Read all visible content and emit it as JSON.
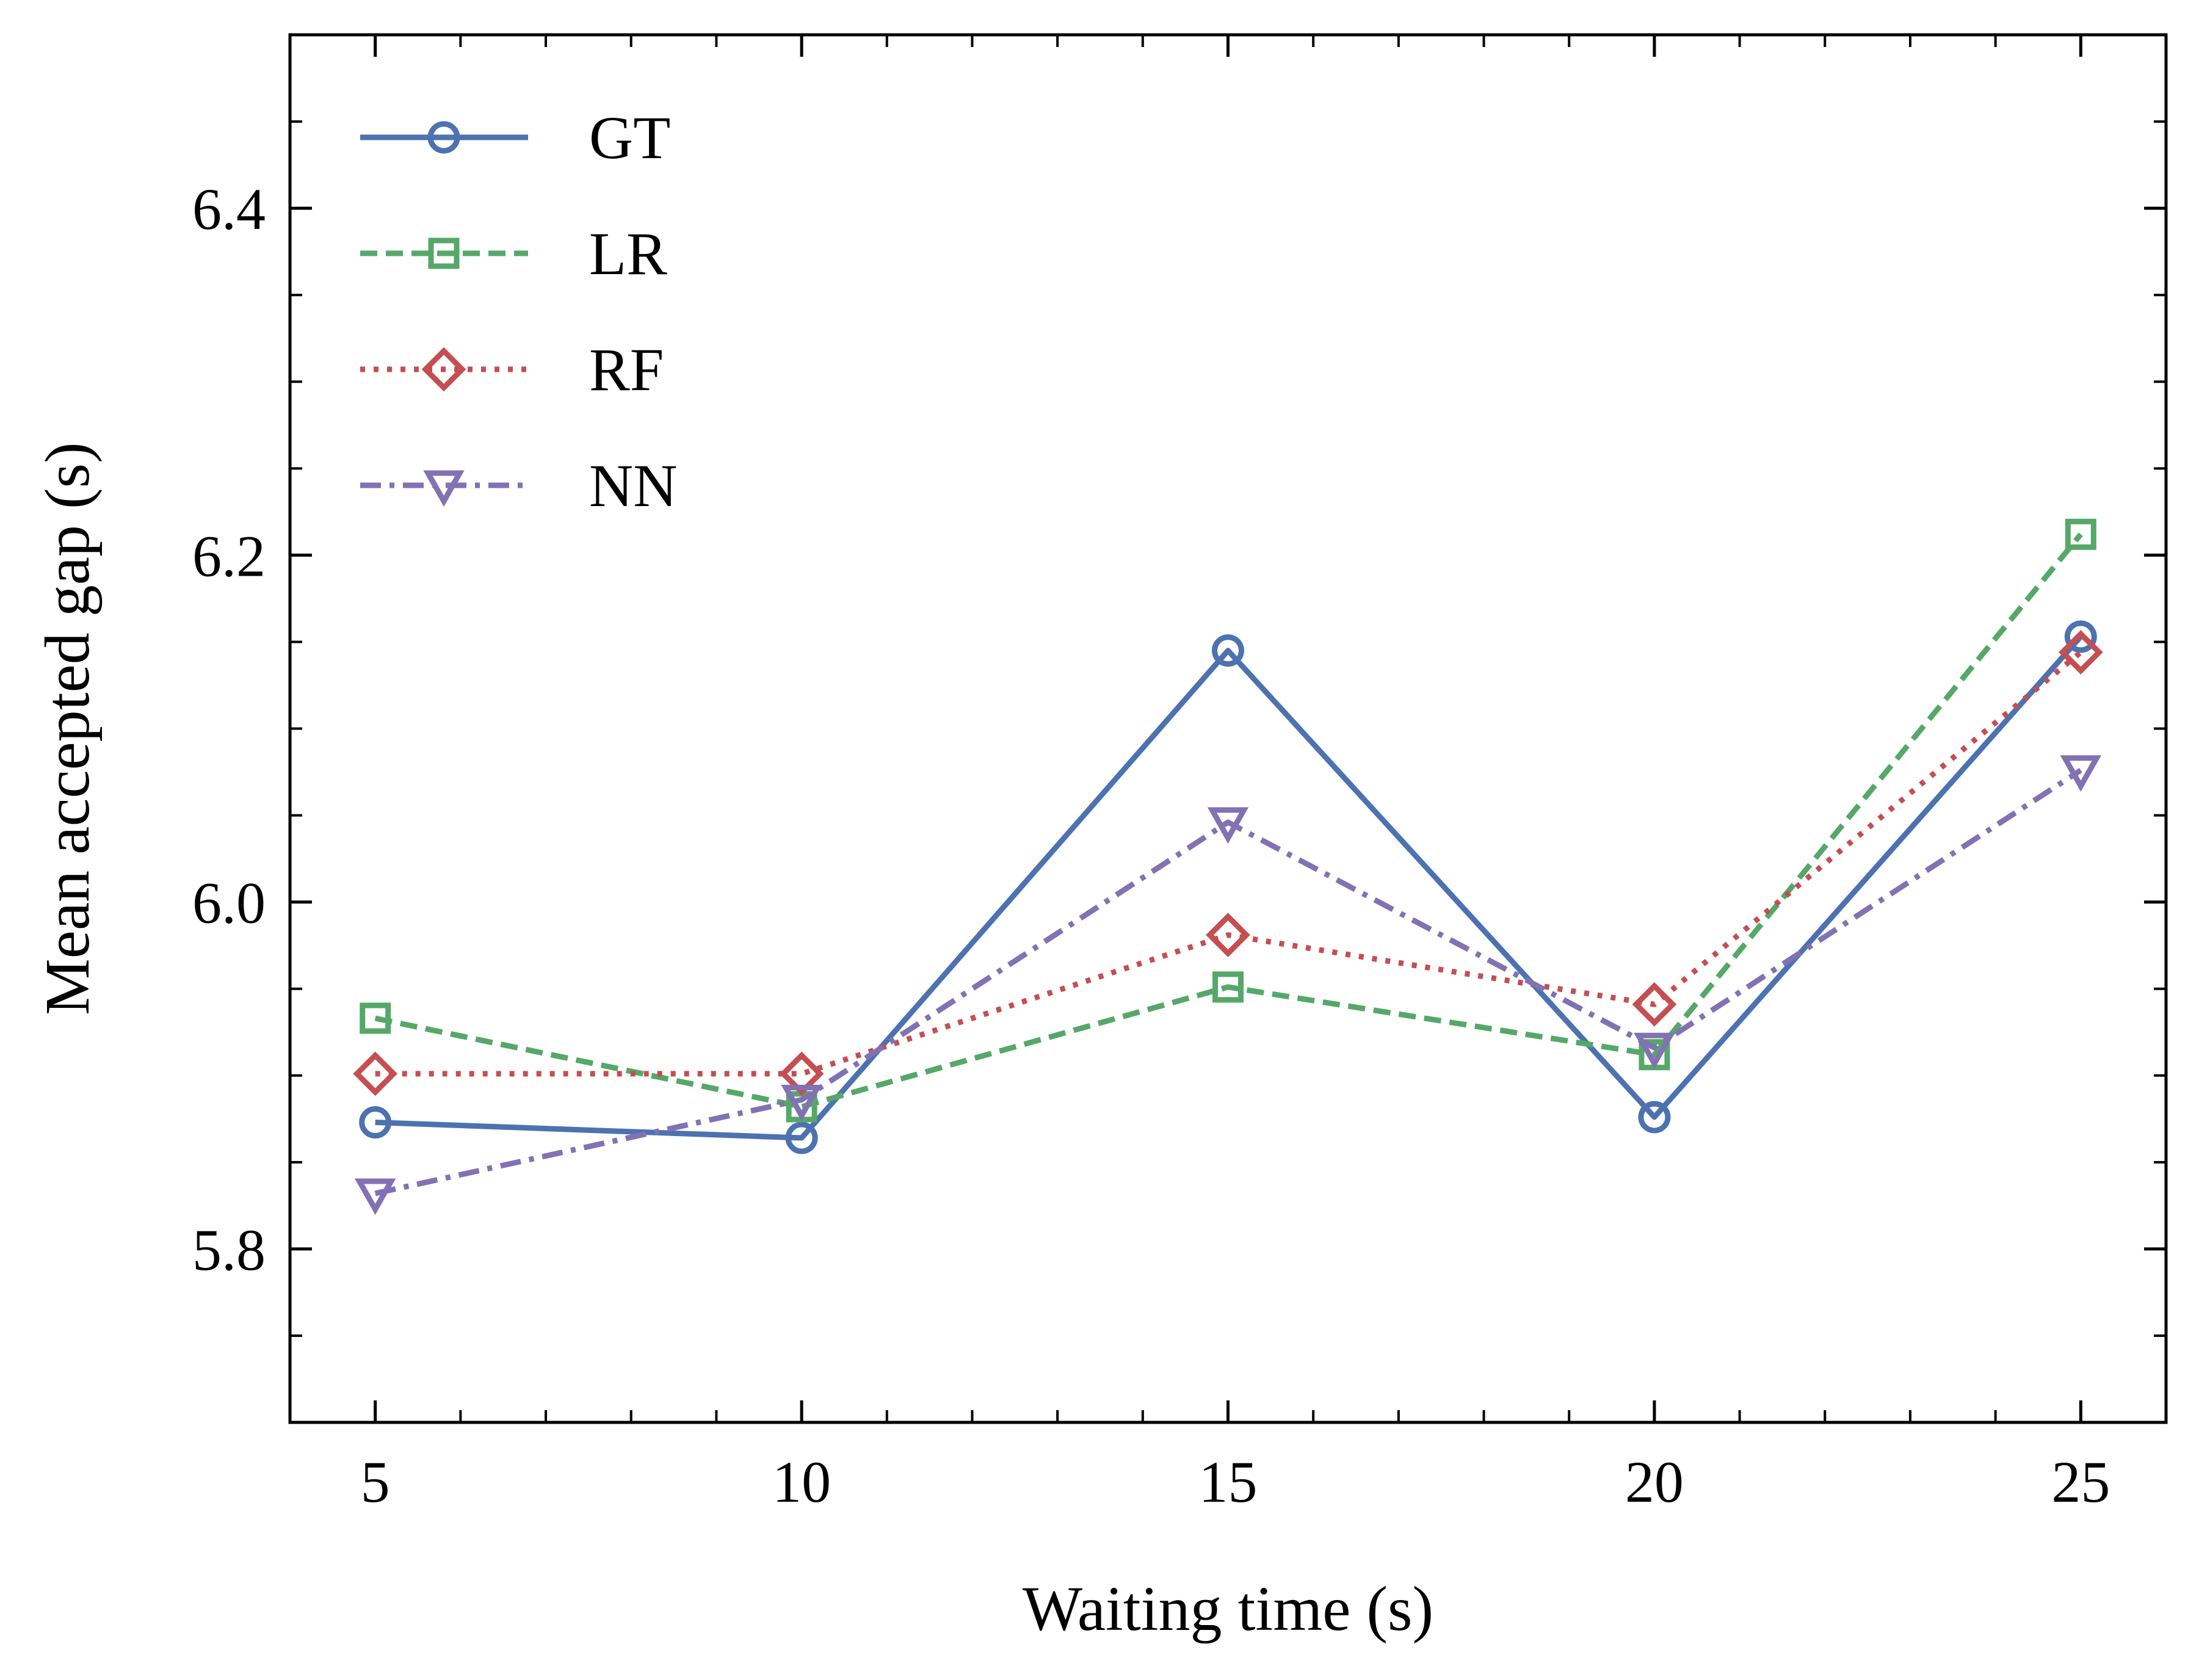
{
  "chart_data": {
    "type": "line",
    "title": "",
    "xlabel": "Waiting time (s)",
    "ylabel": "Mean accepted gap (s)",
    "xlim": [
      4,
      26
    ],
    "ylim": [
      5.7,
      6.5
    ],
    "xticks": [
      5,
      10,
      15,
      20,
      25
    ],
    "xtick_labels": [
      "5",
      "10",
      "15",
      "20",
      "25"
    ],
    "yticks": [
      5.8,
      6.0,
      6.2,
      6.4
    ],
    "ytick_labels": [
      "5.8",
      "6.0",
      "6.2",
      "6.4"
    ],
    "grid": false,
    "legend_position": "top-left",
    "x": [
      5,
      10,
      15,
      20,
      25
    ],
    "series": [
      {
        "name": "GT",
        "values": [
          5.873,
          5.864,
          6.145,
          5.876,
          6.153
        ],
        "color": "#4c72b0",
        "linestyle": "solid",
        "marker": "circle"
      },
      {
        "name": "LR",
        "values": [
          5.933,
          5.882,
          5.951,
          5.912,
          6.212
        ],
        "color": "#55a868",
        "linestyle": "dashed",
        "marker": "square"
      },
      {
        "name": "RF",
        "values": [
          5.901,
          5.901,
          5.981,
          5.941,
          6.144
        ],
        "color": "#c44e52",
        "linestyle": "dotted",
        "marker": "diamond"
      },
      {
        "name": "NN",
        "values": [
          5.832,
          5.886,
          6.046,
          5.916,
          6.076
        ],
        "color": "#8172b3",
        "linestyle": "dashdot",
        "marker": "triangle-down"
      }
    ]
  }
}
